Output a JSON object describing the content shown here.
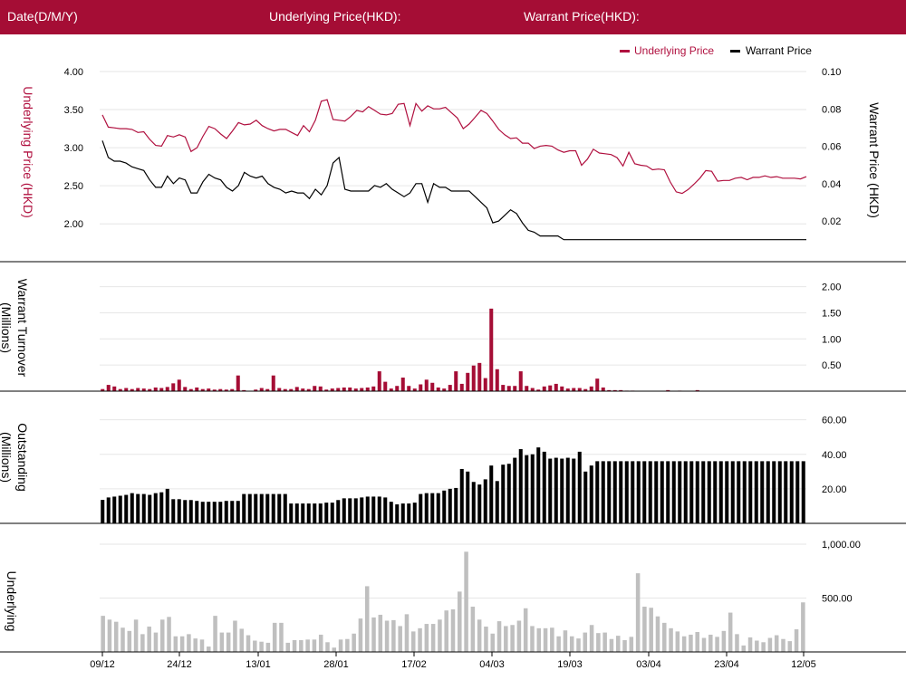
{
  "header": {
    "date_label": "Date(D/M/Y)",
    "underlying_label": "Underlying Price(HKD):",
    "warrant_label": "Warrant Price(HKD):"
  },
  "colors": {
    "header_bg": "#a50d35",
    "underlying": "#b0103f",
    "warrant": "#000000",
    "turnover_bar": "#a50d35",
    "outstanding_bar": "#000000",
    "underlying_turnover_bar": "#bfbfbf"
  },
  "chart_data": [
    {
      "type": "line",
      "legend": [
        "Underlying Price",
        "Warrant Price"
      ],
      "legend_position": "top-right",
      "y_left": {
        "label": "Underlying Price (HKD)",
        "ticks": [
          "4.00",
          "3.50",
          "3.00",
          "2.50",
          "2.00"
        ],
        "range": [
          1.67,
          4.0
        ]
      },
      "y_right": {
        "label": "Warrant  Price (HKD)",
        "ticks": [
          "0.10",
          "0.08",
          "0.06",
          "0.04",
          "0.02"
        ],
        "range": [
          0.005,
          0.1
        ]
      },
      "series": [
        {
          "name": "Underlying Price",
          "axis": "left",
          "values": [
            3.43,
            3.27,
            3.26,
            3.25,
            3.25,
            3.24,
            3.2,
            3.21,
            3.11,
            3.03,
            3.02,
            3.16,
            3.14,
            3.17,
            3.14,
            2.95,
            3.0,
            3.15,
            3.28,
            3.25,
            3.18,
            3.12,
            3.22,
            3.33,
            3.3,
            3.31,
            3.36,
            3.29,
            3.25,
            3.22,
            3.24,
            3.24,
            3.2,
            3.16,
            3.29,
            3.21,
            3.36,
            3.61,
            3.63,
            3.37,
            3.36,
            3.35,
            3.41,
            3.49,
            3.47,
            3.54,
            3.49,
            3.44,
            3.43,
            3.45,
            3.57,
            3.58,
            3.29,
            3.58,
            3.48,
            3.55,
            3.51,
            3.51,
            3.53,
            3.46,
            3.39,
            3.25,
            3.31,
            3.4,
            3.49,
            3.45,
            3.35,
            3.24,
            3.17,
            3.12,
            3.13,
            3.06,
            3.06,
            2.99,
            3.02,
            3.03,
            3.02,
            2.97,
            2.94,
            2.96,
            2.96,
            2.77,
            2.85,
            2.98,
            2.93,
            2.92,
            2.91,
            2.87,
            2.76,
            2.94,
            2.79,
            2.77,
            2.76,
            2.71,
            2.72,
            2.71,
            2.55,
            2.42,
            2.4,
            2.45,
            2.52,
            2.6,
            2.7,
            2.69,
            2.56,
            2.57,
            2.57,
            2.6,
            2.61,
            2.58,
            2.61,
            2.61,
            2.63,
            2.61,
            2.62,
            2.6,
            2.6,
            2.6,
            2.59,
            2.62
          ]
        },
        {
          "name": "Warrant Price",
          "axis": "right",
          "values": [
            0.063,
            0.054,
            0.052,
            0.052,
            0.051,
            0.049,
            0.048,
            0.047,
            0.042,
            0.038,
            0.038,
            0.044,
            0.04,
            0.043,
            0.042,
            0.035,
            0.035,
            0.041,
            0.045,
            0.043,
            0.042,
            0.038,
            0.036,
            0.039,
            0.046,
            0.044,
            0.043,
            0.044,
            0.04,
            0.038,
            0.037,
            0.035,
            0.036,
            0.035,
            0.035,
            0.032,
            0.037,
            0.034,
            0.039,
            0.051,
            0.054,
            0.037,
            0.036,
            0.036,
            0.036,
            0.036,
            0.039,
            0.038,
            0.04,
            0.037,
            0.035,
            0.033,
            0.035,
            0.04,
            0.04,
            0.03,
            0.04,
            0.038,
            0.038,
            0.036,
            0.036,
            0.036,
            0.036,
            0.033,
            0.03,
            0.027,
            0.019,
            0.02,
            0.023,
            0.026,
            0.024,
            0.019,
            0.015,
            0.014,
            0.012,
            0.012,
            0.012,
            0.012,
            0.01,
            0.01,
            0.01,
            0.01,
            0.01,
            0.01,
            0.01,
            0.01,
            0.01,
            0.01,
            0.01,
            0.01,
            0.01,
            0.01,
            0.01,
            0.01,
            0.01,
            0.01,
            0.01,
            0.01,
            0.01,
            0.01,
            0.01,
            0.01,
            0.01,
            0.01,
            0.01,
            0.01,
            0.01,
            0.01,
            0.01,
            0.01,
            0.01,
            0.01,
            0.01,
            0.01,
            0.01,
            0.01,
            0.01,
            0.01,
            0.01,
            0.01
          ]
        }
      ]
    },
    {
      "type": "bar",
      "ylabel": "Warrant  Turnover (Millions)",
      "y_ticks": [
        "2.00",
        "1.50",
        "1.00",
        "0.50"
      ],
      "ylim": [
        0,
        2.08
      ],
      "values": [
        0.04,
        0.12,
        0.09,
        0.04,
        0.06,
        0.04,
        0.06,
        0.05,
        0.04,
        0.07,
        0.06,
        0.08,
        0.15,
        0.22,
        0.08,
        0.04,
        0.07,
        0.04,
        0.05,
        0.03,
        0.04,
        0.03,
        0.04,
        0.3,
        0.02,
        0.0,
        0.03,
        0.06,
        0.04,
        0.3,
        0.06,
        0.04,
        0.04,
        0.08,
        0.05,
        0.04,
        0.1,
        0.09,
        0.03,
        0.05,
        0.06,
        0.07,
        0.07,
        0.05,
        0.06,
        0.07,
        0.09,
        0.38,
        0.18,
        0.05,
        0.1,
        0.26,
        0.1,
        0.05,
        0.13,
        0.22,
        0.16,
        0.07,
        0.05,
        0.12,
        0.38,
        0.14,
        0.35,
        0.49,
        0.54,
        0.25,
        1.58,
        0.42,
        0.12,
        0.1,
        0.1,
        0.38,
        0.1,
        0.06,
        0.03,
        0.09,
        0.11,
        0.14,
        0.09,
        0.05,
        0.06,
        0.06,
        0.04,
        0.09,
        0.24,
        0.07,
        0.02,
        0.02,
        0.02,
        0.01,
        0.01,
        0.0,
        0.0,
        0.0,
        0.0,
        0.0,
        0.02,
        0.0,
        0.01,
        0.0,
        0.0,
        0.02,
        0.0,
        0.0,
        0.0,
        0.0,
        0.0,
        0.0,
        0.0,
        0.0,
        0.0,
        0.0,
        0.0,
        0.0,
        0.0,
        0.0,
        0.0,
        0.0,
        0.0,
        0.0
      ]
    },
    {
      "type": "bar",
      "ylabel": "Outstanding (Millions)",
      "y_ticks": [
        "60.00",
        "40.00",
        "20.00"
      ],
      "ylim": [
        0,
        64
      ],
      "values": [
        13.6,
        15,
        15.5,
        16,
        16.5,
        17.5,
        17,
        17,
        16.5,
        17.5,
        18,
        20,
        14,
        14,
        13.5,
        13.5,
        13,
        12.5,
        12.5,
        12.5,
        12.5,
        13,
        13,
        13,
        17,
        17,
        17,
        17,
        17,
        17,
        17,
        17,
        11.5,
        11.5,
        11.5,
        11.5,
        11.5,
        11.5,
        12,
        12,
        13.5,
        14.5,
        14.5,
        14.5,
        15,
        15.5,
        15.5,
        15.5,
        15,
        12.5,
        11,
        11.5,
        11.5,
        12,
        17,
        17.5,
        17.5,
        17.5,
        19,
        20,
        20.5,
        31.5,
        30,
        24,
        22.5,
        25.5,
        33.5,
        24.5,
        34,
        34.5,
        38,
        43,
        39.5,
        40,
        44,
        41.5,
        37.5,
        38,
        37.5,
        38,
        37.5,
        41.5,
        30,
        33.5,
        36,
        36,
        36,
        36,
        36,
        36,
        36,
        36,
        36,
        36,
        36,
        36,
        36,
        36,
        36,
        36,
        36,
        36,
        36,
        36,
        36,
        36,
        36,
        36,
        36,
        36,
        36,
        36,
        36,
        36,
        36,
        36,
        36,
        36,
        36,
        36
      ]
    },
    {
      "type": "bar",
      "ylabel": "Underlying Turnover (Millions)",
      "y_ticks": [
        "1,000.00",
        "500.00"
      ],
      "ylim": [
        0,
        1000
      ],
      "values": [
        335,
        300,
        280,
        225,
        195,
        300,
        165,
        235,
        180,
        300,
        325,
        145,
        145,
        165,
        125,
        115,
        50,
        335,
        180,
        180,
        290,
        215,
        155,
        105,
        95,
        85,
        270,
        270,
        85,
        110,
        110,
        115,
        115,
        160,
        90,
        40,
        115,
        120,
        170,
        310,
        610,
        320,
        345,
        290,
        295,
        240,
        350,
        190,
        220,
        260,
        260,
        300,
        385,
        395,
        560,
        930,
        420,
        300,
        235,
        170,
        285,
        240,
        250,
        290,
        405,
        240,
        220,
        220,
        225,
        145,
        200,
        145,
        125,
        180,
        250,
        175,
        180,
        120,
        150,
        110,
        140,
        730,
        420,
        410,
        330,
        270,
        220,
        190,
        145,
        160,
        185,
        130,
        160,
        140,
        195,
        365,
        165,
        60,
        135,
        105,
        90,
        130,
        155,
        120,
        100,
        210,
        460
      ]
    }
  ],
  "x_axis": {
    "ticks": [
      "09/12",
      "24/12",
      "13/01",
      "28/01",
      "17/02",
      "04/03",
      "19/03",
      "03/04",
      "23/04",
      "12/05"
    ]
  }
}
